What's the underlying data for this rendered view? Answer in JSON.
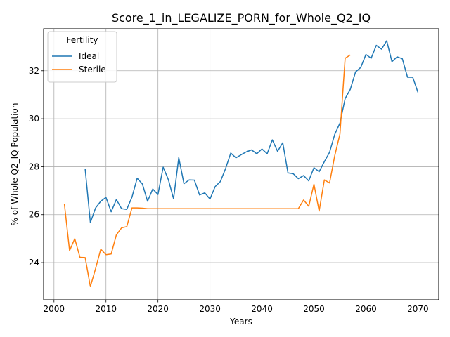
{
  "chart_data": {
    "type": "line",
    "title": "Score_1_in_LEGALIZE_PORN_for_Whole_Q2_IQ",
    "xlabel": "Years",
    "ylabel": "% of Whole Q2_IQ Population",
    "xlim": [
      1998,
      2074
    ],
    "ylim": [
      22.45,
      33.75
    ],
    "xticks": [
      2000,
      2010,
      2020,
      2030,
      2040,
      2050,
      2060,
      2070
    ],
    "yticks": [
      24,
      26,
      28,
      30,
      32
    ],
    "grid": true,
    "legend": {
      "title": "Fertility",
      "placement": "top-left"
    },
    "series": [
      {
        "name": "Ideal",
        "color": "#1f77b4",
        "x": [
          2006,
          2007,
          2008,
          2009,
          2010,
          2011,
          2012,
          2013,
          2014,
          2015,
          2016,
          2017,
          2018,
          2019,
          2020,
          2021,
          2022,
          2023,
          2024,
          2025,
          2026,
          2027,
          2028,
          2029,
          2030,
          2031,
          2032,
          2033,
          2034,
          2035,
          2036,
          2037,
          2038,
          2039,
          2040,
          2041,
          2042,
          2043,
          2044,
          2045,
          2046,
          2047,
          2048,
          2049,
          2050,
          2051,
          2052,
          2053,
          2054,
          2055,
          2056,
          2057,
          2058,
          2059,
          2060,
          2061,
          2062,
          2063,
          2064,
          2065,
          2066,
          2067,
          2068,
          2069,
          2070
        ],
        "y": [
          27.9,
          25.67,
          26.28,
          26.56,
          26.72,
          26.12,
          26.63,
          26.25,
          26.22,
          26.73,
          27.52,
          27.28,
          26.56,
          27.07,
          26.84,
          27.98,
          27.46,
          26.66,
          28.38,
          27.29,
          27.45,
          27.44,
          26.82,
          26.91,
          26.65,
          27.17,
          27.38,
          27.92,
          28.57,
          28.37,
          28.5,
          28.62,
          28.7,
          28.54,
          28.74,
          28.54,
          29.12,
          28.64,
          29.0,
          27.74,
          27.71,
          27.5,
          27.63,
          27.41,
          27.96,
          27.79,
          28.21,
          28.6,
          29.35,
          29.82,
          30.84,
          31.23,
          31.95,
          32.14,
          32.68,
          32.52,
          33.06,
          32.9,
          33.25,
          32.38,
          32.58,
          32.5,
          31.73,
          31.73,
          31.1
        ]
      },
      {
        "name": "Sterile",
        "color": "#ff7f0e",
        "x": [
          2002,
          2003,
          2004,
          2005,
          2006,
          2007,
          2008,
          2009,
          2010,
          2011,
          2012,
          2013,
          2014,
          2015,
          2016,
          2017,
          2018,
          2019,
          2020,
          2021,
          2022,
          2023,
          2024,
          2025,
          2026,
          2027,
          2028,
          2029,
          2030,
          2031,
          2032,
          2033,
          2034,
          2035,
          2036,
          2037,
          2038,
          2039,
          2040,
          2041,
          2042,
          2043,
          2044,
          2045,
          2046,
          2047,
          2048,
          2049,
          2050,
          2051,
          2052,
          2053,
          2054,
          2055,
          2056,
          2057
        ],
        "y": [
          26.45,
          24.5,
          25.0,
          24.22,
          24.21,
          23.0,
          23.75,
          24.56,
          24.33,
          24.36,
          25.16,
          25.45,
          25.5,
          26.28,
          26.28,
          26.27,
          26.25,
          26.25,
          26.25,
          26.25,
          26.25,
          26.25,
          26.25,
          26.25,
          26.25,
          26.25,
          26.25,
          26.25,
          26.25,
          26.25,
          26.25,
          26.25,
          26.25,
          26.25,
          26.25,
          26.25,
          26.25,
          26.25,
          26.25,
          26.25,
          26.25,
          26.25,
          26.25,
          26.25,
          26.25,
          26.25,
          26.61,
          26.35,
          27.27,
          26.15,
          27.45,
          27.32,
          28.46,
          29.36,
          32.52,
          32.66
        ]
      }
    ]
  }
}
